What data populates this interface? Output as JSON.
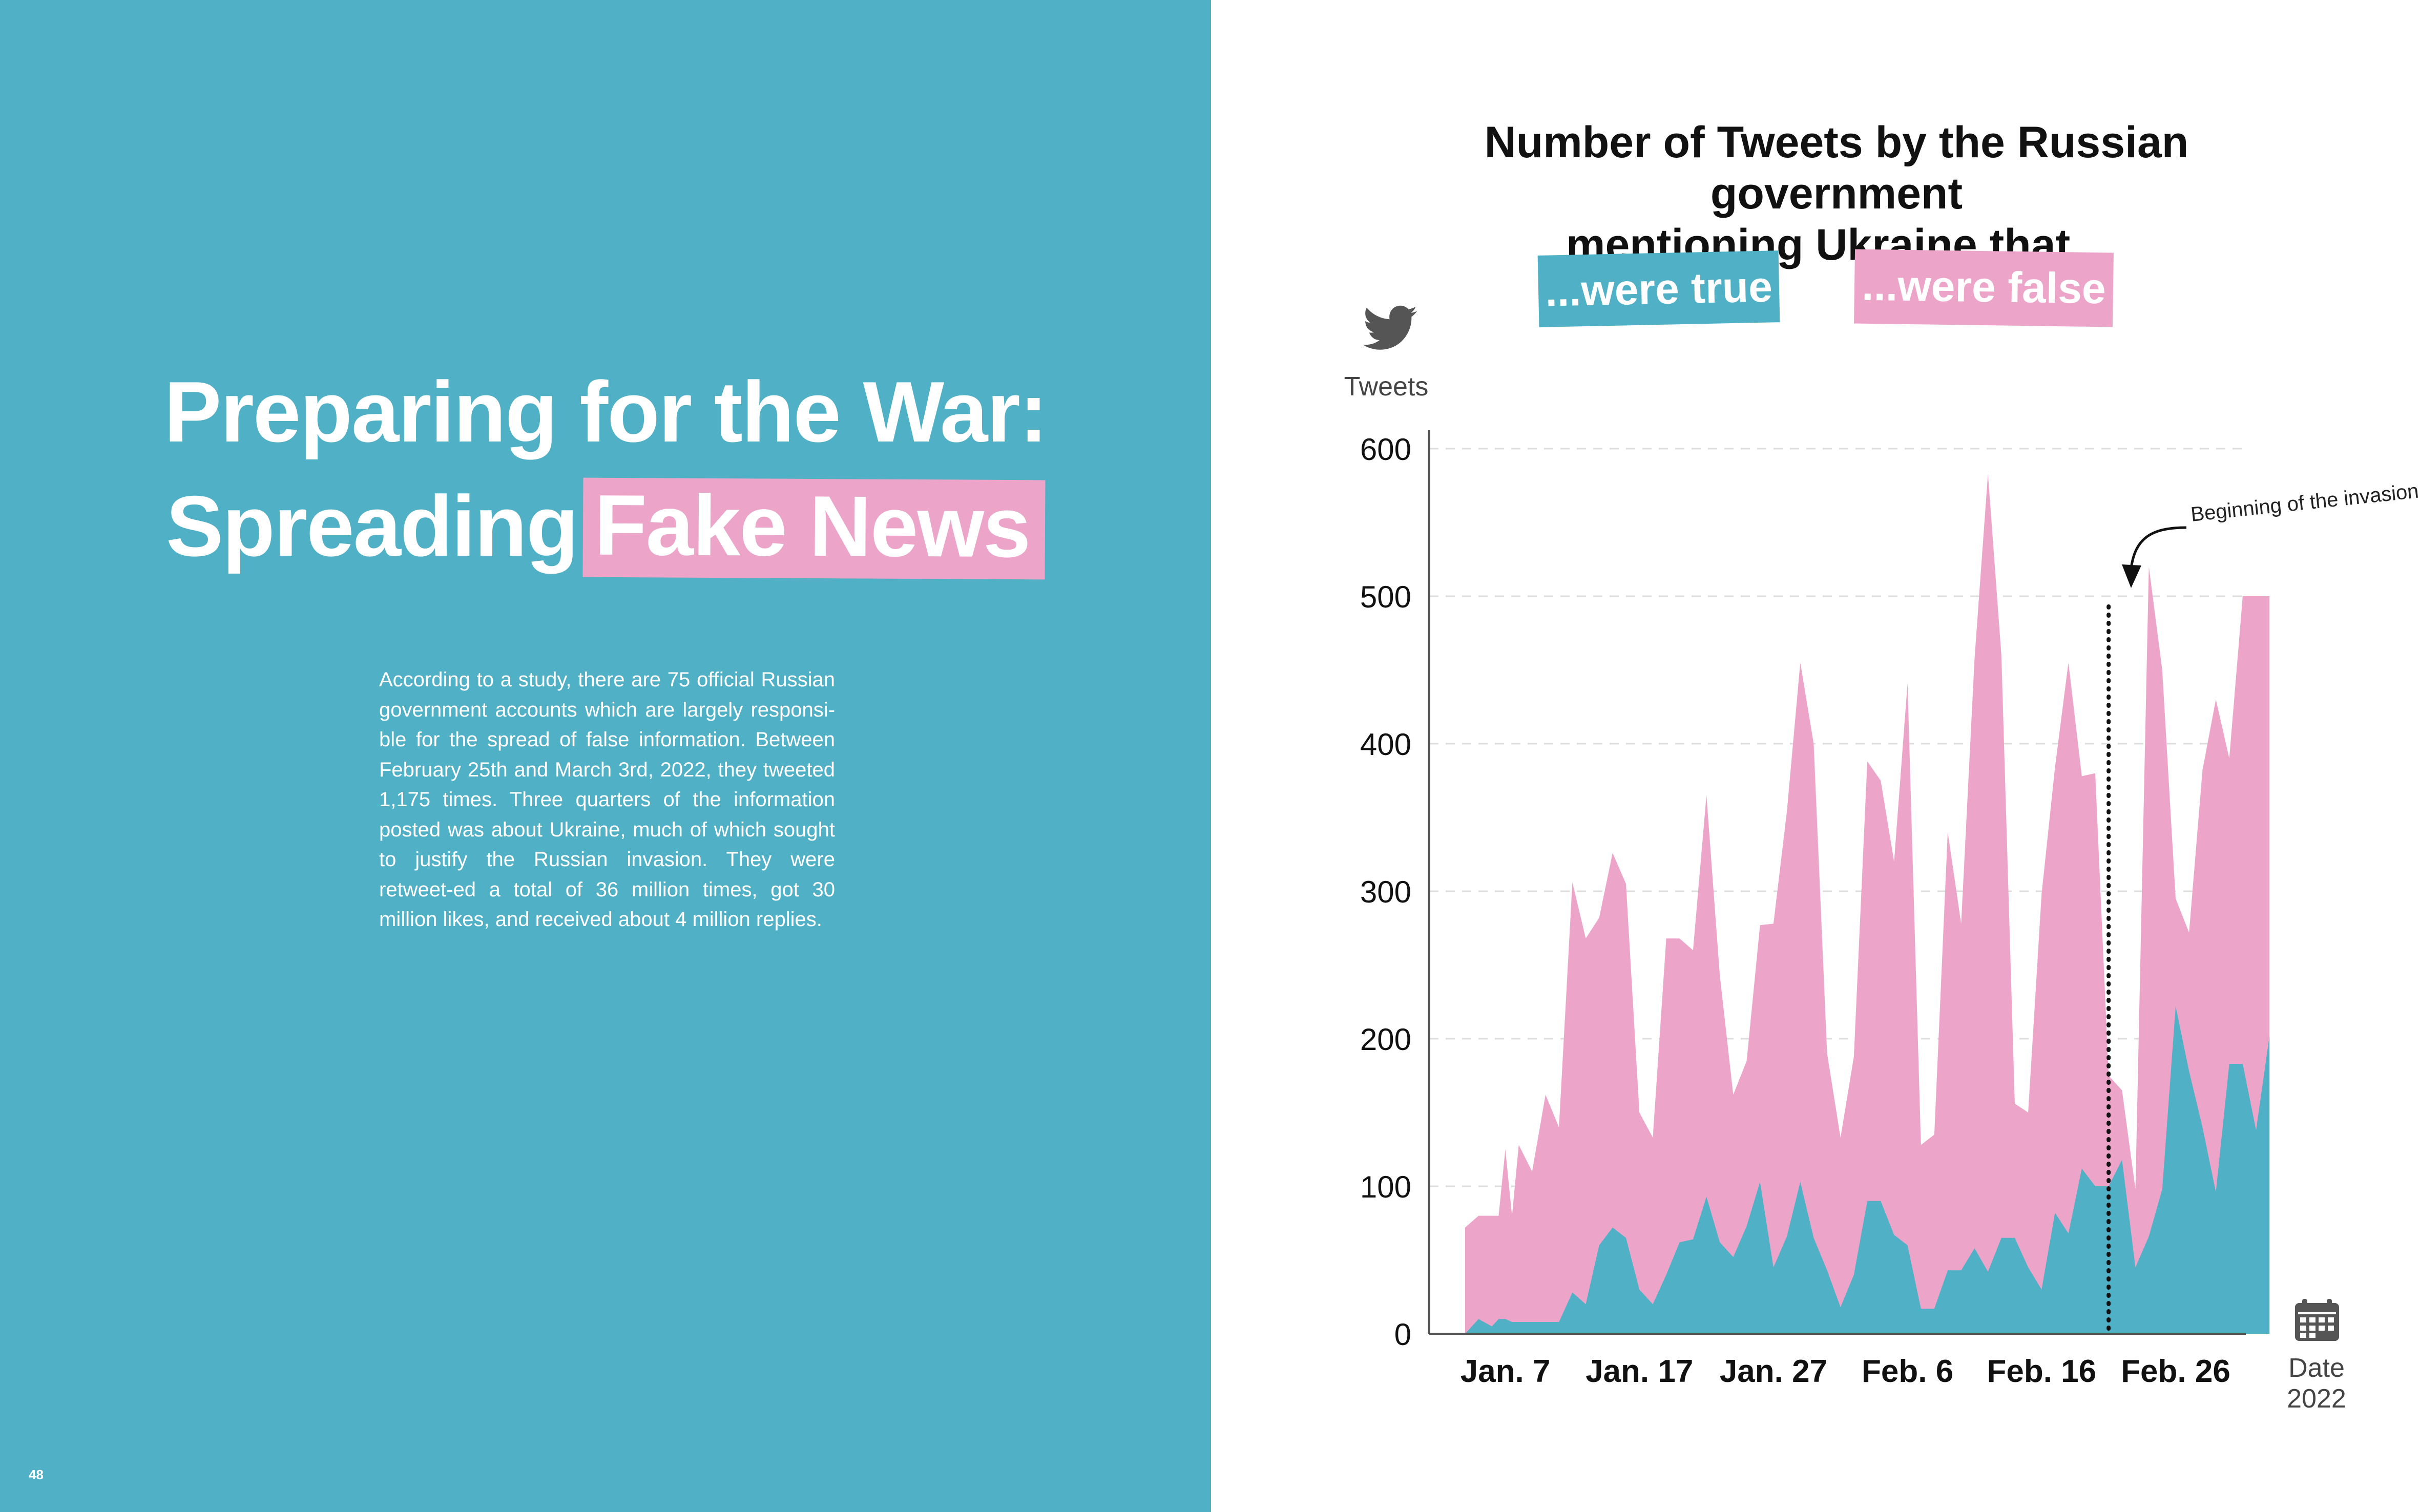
{
  "left_page": {
    "title_line1": "Preparing for the War:",
    "title_line2_prefix": "Spreading",
    "title_line2_highlight": "Fake News",
    "body": "According to a study, there are 75 official Russian government accounts which are largely responsi-ble for the spread of false information. Between February 25th and March 3rd, 2022, they tweeted 1,175 times. Three quarters of the  information posted was about Ukraine, much of which sought to justify the Russian invasion. They were retweet-ed a total of 36 million times, got 30 million likes, and received about 4 million replies.",
    "page_number": "48"
  },
  "colors": {
    "left_background": "#4fb0c6",
    "true_color": "#4fb0c6",
    "false_color": "#eca5c8"
  },
  "chart_data": {
    "type": "area",
    "title_line1": "Number of Tweets by the Russian government",
    "title_line2": "mentioning Ukraine that...",
    "legend": {
      "true_label": "...were true",
      "false_label": "...were false"
    },
    "ylabel": "Tweets",
    "xlabel_line1": "Date",
    "xlabel_line2": "2022",
    "ylim": [
      0,
      600
    ],
    "yticks": [
      "0",
      "100",
      "200",
      "300",
      "400",
      "500",
      "600"
    ],
    "y_tick_values": [
      0,
      100,
      200,
      300,
      400,
      500,
      600
    ],
    "x_tick_labels": [
      "Jan. 7",
      "Jan. 17",
      "Jan. 27",
      "Feb. 6",
      "Feb. 16",
      "Feb. 26"
    ],
    "x_tick_days": [
      6,
      16,
      26,
      36,
      46,
      56
    ],
    "x_start_day": 3,
    "x_end_day": 63,
    "annotation": {
      "text": "Beginning of the invasion",
      "day": 51
    },
    "x_days": [
      3,
      4,
      5,
      5.5,
      6,
      6.5,
      7,
      8,
      9,
      10,
      11,
      12,
      13,
      14,
      15,
      16,
      17,
      18,
      19,
      20,
      21,
      22,
      23,
      24,
      25,
      26,
      27,
      28,
      29,
      30,
      31,
      32,
      33,
      34,
      35,
      36,
      37,
      38,
      39,
      40,
      41,
      42,
      43,
      44,
      45,
      46,
      47,
      48,
      49,
      50,
      51,
      52,
      53,
      54,
      55,
      56,
      57,
      58,
      59,
      60,
      61,
      62,
      63
    ],
    "series": [
      {
        "name": "...were true",
        "values": [
          0,
          10,
          5,
          10,
          10,
          8,
          8,
          8,
          8,
          8,
          28,
          20,
          60,
          72,
          65,
          30,
          20,
          40,
          62,
          64,
          93,
          62,
          52,
          73,
          103,
          45,
          66,
          103,
          65,
          43,
          18,
          40,
          90,
          90,
          67,
          60,
          17,
          17,
          43,
          43,
          58,
          42,
          65,
          65,
          45,
          30,
          82,
          68,
          112,
          100,
          100,
          118,
          45,
          66,
          98,
          222,
          178,
          140,
          96,
          183,
          183,
          138,
          202
        ]
      },
      {
        "name": "...were false",
        "values": [
          72,
          80,
          80,
          80,
          125,
          80,
          128,
          110,
          162,
          140,
          306,
          268,
          282,
          326,
          305,
          150,
          133,
          268,
          268,
          260,
          365,
          243,
          162,
          185,
          277,
          278,
          354,
          455,
          400,
          190,
          133,
          188,
          388,
          375,
          320,
          441,
          128,
          135,
          340,
          278,
          458,
          583,
          460,
          156,
          150,
          298,
          384,
          455,
          378,
          380,
          175,
          165,
          98,
          520,
          450,
          295,
          272,
          382,
          430,
          390,
          500,
          500,
          500
        ]
      }
    ]
  }
}
